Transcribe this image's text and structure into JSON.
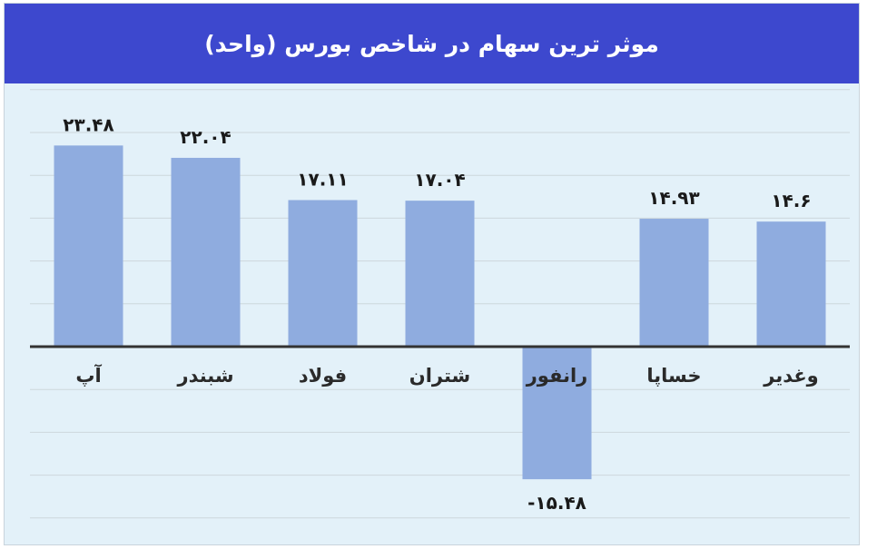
{
  "chart_data": {
    "type": "bar",
    "title": "موثر ترین سهام در شاخص بورس (واحد)",
    "categories": [
      "وغدیر",
      "خساپا",
      "رانفور",
      "شتران",
      "فولاد",
      "شبندر",
      "آپ"
    ],
    "value_labels": [
      "۱۴.۶",
      "۱۴.۹۳",
      "-۱۵.۴۸",
      "۱۷.۰۴",
      "۱۷.۱۱",
      "۲۲.۰۴",
      "۲۳.۴۸"
    ],
    "values": [
      14.6,
      14.93,
      -15.48,
      17.04,
      17.11,
      22.04,
      23.48
    ],
    "ylim": [
      -20,
      30
    ],
    "ytick_step": 5,
    "grid": true,
    "bar_color": "#8facdf",
    "title_bar_color": "#3d48ce"
  }
}
